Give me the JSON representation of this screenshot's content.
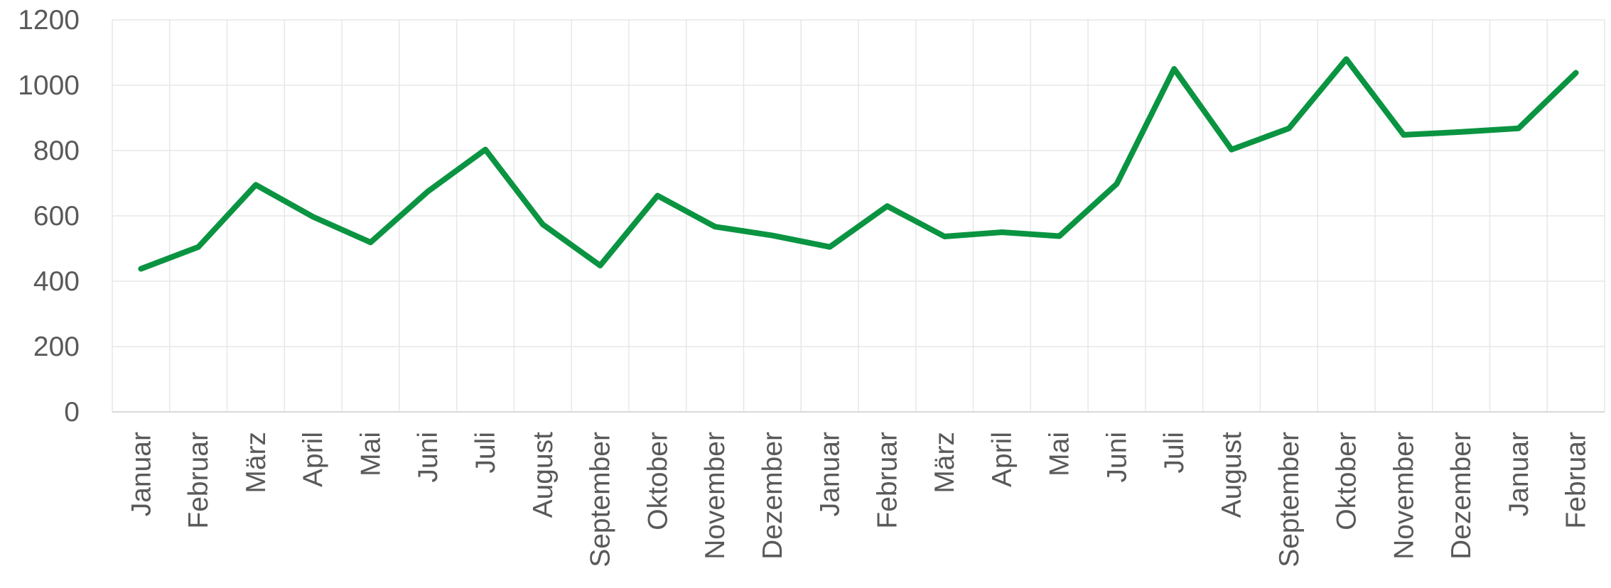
{
  "chart_data": {
    "type": "line",
    "title": "",
    "xlabel": "",
    "ylabel": "",
    "categories": [
      "Januar",
      "Februar",
      "März",
      "April",
      "Mai",
      "Juni",
      "Juli",
      "August",
      "September",
      "Oktober",
      "November",
      "Dezember",
      "Januar",
      "Februar",
      "März",
      "April",
      "Mai",
      "Juni",
      "Juli",
      "August",
      "September",
      "Oktober",
      "November",
      "Dezember",
      "Januar",
      "Februar"
    ],
    "series": [
      {
        "values": [
          438,
          505,
          695,
          597,
          519,
          675,
          803,
          574,
          448,
          662,
          567,
          540,
          505,
          630,
          537,
          550,
          538,
          698,
          1050,
          803,
          868,
          1080,
          848,
          857,
          868,
          1038
        ],
        "color": "#0a9441"
      }
    ],
    "ylim": [
      0,
      1200
    ],
    "yticks": [
      "0",
      "200",
      "400",
      "600",
      "800",
      "1000",
      "1200"
    ],
    "grid": true,
    "legend": "none"
  }
}
